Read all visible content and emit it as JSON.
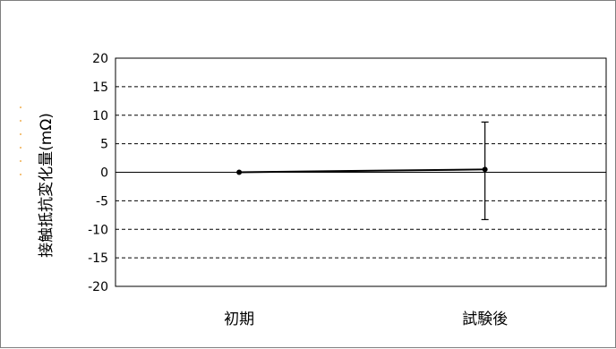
{
  "chart_data": {
    "type": "line",
    "title": "",
    "xlabel": "",
    "ylabel": "接触抵抗変化量(mΩ)",
    "categories": [
      "初期",
      "試験後"
    ],
    "ylim": [
      -20,
      20
    ],
    "y_ticks": [
      20,
      15,
      10,
      5,
      0,
      -5,
      -10,
      -15,
      -20
    ],
    "grid": "dashed horizontal",
    "series": [
      {
        "values": [
          0,
          0.5
        ],
        "error_min": [
          0,
          -8.3
        ],
        "error_max": [
          0,
          8.8
        ],
        "color": "#000000"
      }
    ]
  }
}
